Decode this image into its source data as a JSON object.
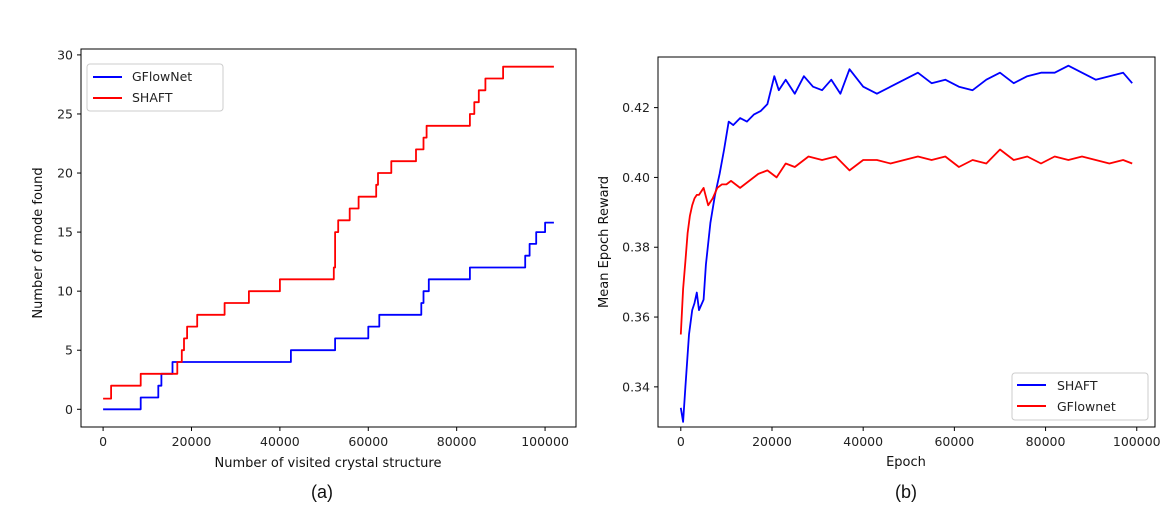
{
  "chart_data": [
    {
      "id": "a",
      "type": "line",
      "caption": "(a)",
      "xlabel": "Number of visited crystal structure",
      "ylabel": "Number of mode found",
      "xlim": [
        -5000,
        107000
      ],
      "ylim": [
        -1.5,
        30.5
      ],
      "xticks": [
        0,
        20000,
        40000,
        60000,
        80000,
        100000
      ],
      "yticks": [
        0,
        5,
        10,
        15,
        20,
        25,
        30
      ],
      "legend_position": "top-left",
      "step": true,
      "series": [
        {
          "name": "GFlowNet",
          "color": "#0000ff",
          "x": [
            0,
            8500,
            12500,
            13200,
            15700,
            17500,
            42500,
            52500,
            60000,
            62500,
            72000,
            72500,
            73700,
            83000,
            95500,
            96500,
            98000,
            100000,
            102000
          ],
          "y": [
            0,
            1,
            2,
            3,
            4,
            4,
            5,
            6,
            7,
            8,
            9,
            10,
            11,
            12,
            13,
            14,
            15,
            15.8,
            15.8
          ]
        },
        {
          "name": "SHAFT",
          "color": "#ff0000",
          "x": [
            0,
            1800,
            8500,
            16800,
            17800,
            18300,
            19000,
            21300,
            27500,
            33000,
            40000,
            52200,
            52500,
            53200,
            55800,
            57800,
            61800,
            62200,
            65200,
            70800,
            72500,
            73200,
            83000,
            84000,
            85000,
            86500,
            90500,
            102000
          ],
          "y": [
            0.9,
            2,
            3,
            4,
            5,
            6,
            7,
            8,
            9,
            10,
            11,
            12,
            15,
            16,
            17,
            18,
            19,
            20,
            21,
            22,
            23,
            24,
            25,
            26,
            27,
            28,
            29,
            29
          ]
        }
      ]
    },
    {
      "id": "b",
      "type": "line",
      "caption": "(b)",
      "xlabel": "Epoch",
      "ylabel": "Mean Epoch Reward",
      "xlim": [
        -5000,
        104000
      ],
      "ylim": [
        0.3285,
        0.4345
      ],
      "xticks": [
        0,
        20000,
        40000,
        60000,
        80000,
        100000
      ],
      "yticks": [
        0.34,
        0.36,
        0.38,
        0.4,
        0.42
      ],
      "ytick_labels": [
        "0.34",
        "0.36",
        "0.38",
        "0.40",
        "0.42"
      ],
      "legend_position": "bottom-right",
      "series": [
        {
          "name": "SHAFT",
          "color": "#0000ff",
          "x": [
            0,
            500,
            1000,
            1800,
            2500,
            3000,
            3500,
            4000,
            5000,
            5500,
            6500,
            7500,
            8500,
            9500,
            10500,
            11500,
            13000,
            14500,
            16000,
            17500,
            19000,
            20500,
            21500,
            23000,
            25000,
            27000,
            29000,
            31000,
            33000,
            35000,
            37000,
            40000,
            43000,
            46000,
            49000,
            52000,
            55000,
            58000,
            61000,
            64000,
            67000,
            70000,
            73000,
            76000,
            79000,
            82000,
            85000,
            88000,
            91000,
            94000,
            97000,
            99000
          ],
          "y": [
            0.334,
            0.33,
            0.34,
            0.355,
            0.362,
            0.364,
            0.367,
            0.362,
            0.365,
            0.375,
            0.387,
            0.395,
            0.401,
            0.408,
            0.416,
            0.415,
            0.417,
            0.416,
            0.418,
            0.419,
            0.421,
            0.429,
            0.425,
            0.428,
            0.424,
            0.429,
            0.426,
            0.425,
            0.428,
            0.424,
            0.431,
            0.426,
            0.424,
            0.426,
            0.428,
            0.43,
            0.427,
            0.428,
            0.426,
            0.425,
            0.428,
            0.43,
            0.427,
            0.429,
            0.43,
            0.43,
            0.432,
            0.43,
            0.428,
            0.429,
            0.43,
            0.427
          ]
        },
        {
          "name": "GFlownet",
          "color": "#ff0000",
          "x": [
            0,
            500,
            1000,
            1500,
            2000,
            2500,
            3000,
            3500,
            4000,
            5000,
            6000,
            7000,
            8000,
            9000,
            10000,
            11000,
            13000,
            15000,
            17000,
            19000,
            21000,
            23000,
            25000,
            28000,
            31000,
            34000,
            37000,
            40000,
            43000,
            46000,
            49000,
            52000,
            55000,
            58000,
            61000,
            64000,
            67000,
            70000,
            73000,
            76000,
            79000,
            82000,
            85000,
            88000,
            91000,
            94000,
            97000,
            99000
          ],
          "y": [
            0.355,
            0.368,
            0.376,
            0.384,
            0.389,
            0.392,
            0.394,
            0.395,
            0.395,
            0.397,
            0.392,
            0.394,
            0.397,
            0.398,
            0.398,
            0.399,
            0.397,
            0.399,
            0.401,
            0.402,
            0.4,
            0.404,
            0.403,
            0.406,
            0.405,
            0.406,
            0.402,
            0.405,
            0.405,
            0.404,
            0.405,
            0.406,
            0.405,
            0.406,
            0.403,
            0.405,
            0.404,
            0.408,
            0.405,
            0.406,
            0.404,
            0.406,
            0.405,
            0.406,
            0.405,
            0.404,
            0.405,
            0.404
          ]
        }
      ]
    }
  ]
}
